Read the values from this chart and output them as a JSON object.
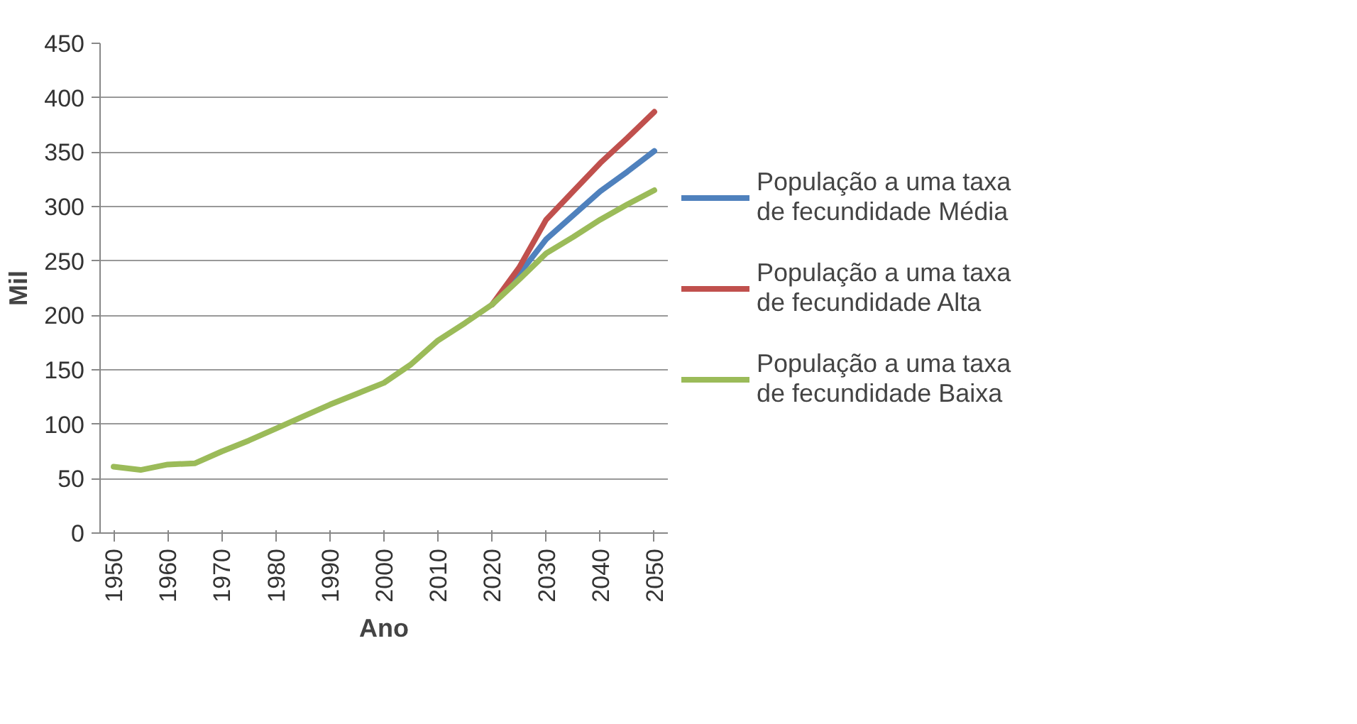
{
  "chart_data": {
    "type": "line",
    "xlabel": "Ano",
    "ylabel": "Mil",
    "x": [
      1950,
      1955,
      1960,
      1965,
      1970,
      1975,
      1980,
      1985,
      1990,
      1995,
      2000,
      2005,
      2010,
      2015,
      2020,
      2025,
      2030,
      2035,
      2040,
      2045,
      2050
    ],
    "series": [
      {
        "name": "População a uma taxa de fecundidade Média",
        "color": "#4f81bd",
        "values": [
          null,
          null,
          null,
          null,
          null,
          null,
          null,
          null,
          null,
          null,
          null,
          null,
          null,
          null,
          210,
          238,
          270,
          292,
          314,
          332,
          351
        ]
      },
      {
        "name": "População a uma taxa de fecundidade Alta",
        "color": "#c0504d",
        "values": [
          null,
          null,
          null,
          null,
          null,
          null,
          null,
          null,
          null,
          null,
          null,
          null,
          null,
          null,
          210,
          244,
          288,
          314,
          340,
          363,
          387
        ]
      },
      {
        "name": "População a uma taxa de fecundidade Baixa",
        "color": "#9bbb59",
        "values": [
          61,
          58,
          63,
          64,
          75,
          85,
          96,
          107,
          118,
          128,
          138,
          155,
          177,
          193,
          210,
          233,
          257,
          272,
          288,
          302,
          315
        ]
      }
    ],
    "xlim": [
      1947.5,
      2052.5
    ],
    "xticks": [
      1950,
      1960,
      1970,
      1980,
      1990,
      2000,
      2010,
      2020,
      2030,
      2040,
      2050
    ],
    "ylim": [
      0,
      450
    ],
    "yticks": [
      0,
      50,
      100,
      150,
      200,
      250,
      300,
      350,
      400,
      450
    ],
    "grid": "y",
    "legend": "right",
    "marker": "none",
    "line_style": "solid"
  }
}
